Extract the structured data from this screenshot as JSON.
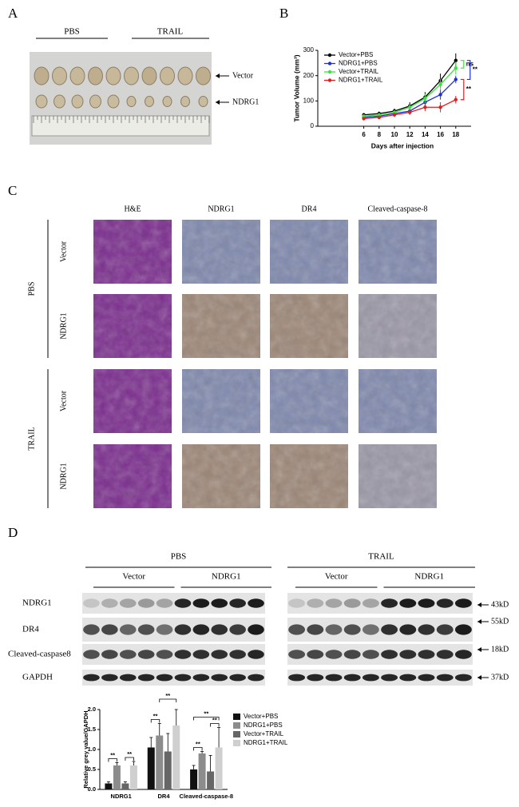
{
  "panel_labels": [
    "A",
    "B",
    "C",
    "D"
  ],
  "panel_a": {
    "groups": [
      "PBS",
      "TRAIL"
    ],
    "rows": [
      "Vector",
      "NDRG1"
    ]
  },
  "chart_data": [
    {
      "type": "line",
      "ylabel": "Tumor Volume (mm³)",
      "xlabel": "Days after injection",
      "x": [
        6,
        8,
        10,
        12,
        14,
        16,
        18
      ],
      "xlim": [
        0,
        20
      ],
      "xticks": [
        6,
        8,
        10,
        12,
        14,
        16,
        18
      ],
      "ylim": [
        0,
        300
      ],
      "yticks": [
        0,
        100,
        200,
        300
      ],
      "legend": "upper left",
      "series": [
        {
          "name": "Vector+PBS",
          "color": "#000000",
          "values": [
            45,
            50,
            60,
            80,
            115,
            180,
            260
          ],
          "errors": [
            6,
            8,
            10,
            15,
            20,
            28,
            28
          ]
        },
        {
          "name": "NDRG1+PBS",
          "color": "#1f2fe0",
          "values": [
            35,
            40,
            50,
            60,
            95,
            125,
            185
          ],
          "errors": [
            5,
            6,
            8,
            10,
            15,
            20,
            15
          ]
        },
        {
          "name": "Vector+TRAIL",
          "color": "#3ee03e",
          "values": [
            40,
            45,
            55,
            75,
            110,
            165,
            230
          ],
          "errors": [
            5,
            6,
            8,
            12,
            18,
            22,
            25
          ]
        },
        {
          "name": "NDRG1+TRAIL",
          "color": "#e02020",
          "values": [
            30,
            35,
            45,
            55,
            75,
            75,
            105
          ],
          "errors": [
            5,
            6,
            8,
            10,
            15,
            20,
            15
          ]
        }
      ],
      "annotations": [
        "ns",
        "**",
        "**"
      ]
    },
    {
      "type": "bar",
      "ylabel": "Relative grey value/GAPDH",
      "categories": [
        "NDRG1",
        "DR4",
        "Cleaved-caspase-8"
      ],
      "ylim": [
        0,
        2
      ],
      "yticks": [
        {
          "value": 0,
          "label": "0.0"
        },
        0.5,
        {
          "value": 1,
          "label": "1.0"
        },
        1.5,
        {
          "value": 2,
          "label": "2.0"
        }
      ],
      "legend": "right",
      "series": [
        {
          "name": "Vector+PBS",
          "color": "#111111",
          "values": [
            0.15,
            1.05,
            0.5
          ],
          "errors": [
            0.04,
            0.25,
            0.1
          ]
        },
        {
          "name": "NDRG1+PBS",
          "color": "#8c8c8c",
          "values": [
            0.6,
            1.35,
            0.9
          ],
          "errors": [
            0.07,
            0.3,
            0.05
          ]
        },
        {
          "name": "Vector+TRAIL",
          "color": "#666666",
          "values": [
            0.15,
            0.95,
            0.45
          ],
          "errors": [
            0.04,
            0.45,
            0.4
          ]
        },
        {
          "name": "NDRG1+TRAIL",
          "color": "#cfcfcf",
          "values": [
            0.6,
            1.6,
            1.05
          ],
          "errors": [
            0.1,
            0.4,
            0.5
          ]
        }
      ],
      "annotations": [
        "**",
        "**",
        "**",
        "**",
        "**",
        "**",
        "**"
      ]
    }
  ],
  "panel_c": {
    "columns": [
      "H&E",
      "NDRG1",
      "DR4",
      "Cleaved-caspase-8"
    ],
    "groups": [
      {
        "name": "PBS",
        "rows": [
          "Vector",
          "NDRG1"
        ]
      },
      {
        "name": "TRAIL",
        "rows": [
          "Vector",
          "NDRG1"
        ]
      }
    ]
  },
  "panel_d": {
    "groups": [
      {
        "name": "PBS",
        "subgroups": [
          "Vector",
          "NDRG1"
        ]
      },
      {
        "name": "TRAIL",
        "subgroups": [
          "Vector",
          "NDRG1"
        ]
      }
    ],
    "proteins": [
      "NDRG1",
      "DR4",
      "Cleaved-caspase8",
      "GAPDH"
    ],
    "sizes": [
      "43kD",
      "55kD",
      "18kD",
      "37kD"
    ]
  }
}
